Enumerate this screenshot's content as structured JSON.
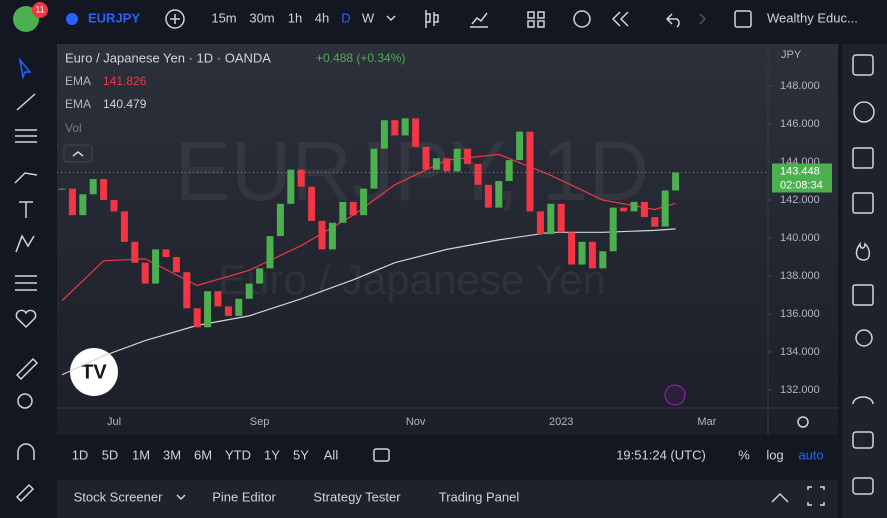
{
  "toolbar": {
    "badge": "11",
    "symbol": "EURJPY",
    "intervals": [
      "15m",
      "30m",
      "1h",
      "4h",
      "D",
      "W"
    ],
    "account": "Wealthy Educ..."
  },
  "chart_data": {
    "type": "candlestick",
    "title": "Euro / Japanese Yen · 1D · OANDA",
    "change": "+0.488 (+0.34%)",
    "watermark": "EURJPY, 1D",
    "watermark_subtitle": "Euro / Japanese Yen",
    "currency": "JPY",
    "countdown": "02:08:34",
    "volume_label": "Vol",
    "categories": [
      null,
      null,
      null,
      null,
      null,
      "Jul",
      null,
      null,
      null,
      null,
      null,
      null,
      null,
      null,
      null,
      null,
      null,
      null,
      null,
      "Sep",
      null,
      null,
      null,
      null,
      null,
      null,
      null,
      null,
      null,
      null,
      null,
      null,
      null,
      null,
      "Nov",
      null,
      null,
      null,
      null,
      null,
      null,
      null,
      null,
      null,
      null,
      null,
      null,
      null,
      "2023",
      null,
      null,
      null,
      null,
      null,
      null,
      null,
      null,
      null,
      null,
      null,
      null,
      null,
      "Mar",
      null
    ],
    "values": [
      142.6,
      141.2,
      142.3,
      143.1,
      142.0,
      141.4,
      139.8,
      138.7,
      137.6,
      139.4,
      139.0,
      138.2,
      136.3,
      135.3,
      137.2,
      136.4,
      135.9,
      136.8,
      137.6,
      138.4,
      140.1,
      141.8,
      143.6,
      142.7,
      140.9,
      139.4,
      140.8,
      141.9,
      141.2,
      142.6,
      144.7,
      146.2,
      145.4,
      146.3,
      144.8,
      143.6,
      144.2,
      143.5,
      144.7,
      143.9,
      142.8,
      141.6,
      143.0,
      144.1,
      145.6,
      141.4,
      140.2,
      141.8,
      140.3,
      138.6,
      139.8,
      138.4,
      139.3,
      141.6,
      141.4,
      141.9,
      141.1,
      140.6,
      142.5,
      143.448,
      null,
      null,
      null,
      null
    ],
    "up_color": "#4caf50",
    "down_color": "#f23645",
    "lines": [
      {
        "name": "EMA",
        "color": "#f23645",
        "x": [
          0,
          4,
          8,
          13,
          18,
          23,
          28,
          32,
          37,
          42,
          47,
          52,
          57,
          59
        ],
        "values": [
          136.7,
          138.8,
          138.9,
          137.5,
          138.3,
          139.6,
          141.2,
          142.8,
          144.1,
          144.4,
          143.3,
          142.0,
          141.5,
          141.826
        ]
      },
      {
        "name": "EMA",
        "color": "#d1d4dc",
        "x": [
          0,
          4,
          8,
          13,
          18,
          23,
          28,
          32,
          37,
          42,
          47,
          52,
          57,
          59
        ],
        "values": [
          132.8,
          133.8,
          134.6,
          135.4,
          135.9,
          136.8,
          137.8,
          138.7,
          139.4,
          139.9,
          140.3,
          140.3,
          140.4,
          140.479
        ]
      }
    ],
    "ylim": [
      131.05,
      150.16
    ],
    "yticks": [
      {
        "value": 132,
        "label": "132.000"
      },
      {
        "value": 134,
        "label": "134.000"
      },
      {
        "value": 136,
        "label": "136.000"
      },
      {
        "value": 138,
        "label": "138.000"
      },
      {
        "value": 140,
        "label": "140.000"
      },
      {
        "value": 142,
        "label": "142.000"
      },
      {
        "value": 144,
        "label": "144.000"
      },
      {
        "value": 146,
        "label": "146.000"
      },
      {
        "value": 148,
        "label": "148.000"
      }
    ]
  },
  "range_bar": {
    "ranges": [
      "1D",
      "5D",
      "1M",
      "3M",
      "6M",
      "YTD",
      "1Y",
      "5Y",
      "All"
    ],
    "clock": "19:51:24 (UTC)",
    "percent": "%",
    "log": "log",
    "auto": "auto"
  },
  "panel": {
    "tabs": [
      "Stock Screener",
      "Pine Editor",
      "Strategy Tester",
      "Trading Panel"
    ]
  }
}
